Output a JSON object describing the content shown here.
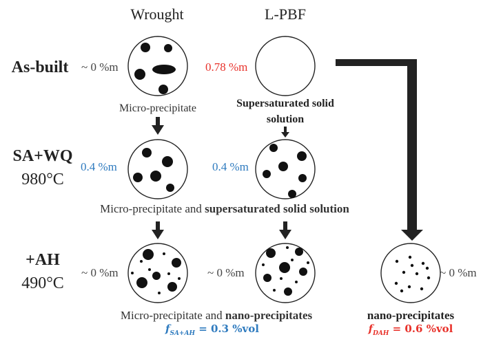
{
  "columns": {
    "wrought": "Wrought",
    "lpbf": "L-PBF"
  },
  "rows": {
    "as_built": {
      "label": "As-built",
      "wrought_fraction": "~ 0 %m",
      "lpbf_fraction": "0.78 %m",
      "wrought_caption": "Micro-precipitate",
      "lpbf_caption_line1": "Supersaturated solid",
      "lpbf_caption_line2": "solution"
    },
    "sa_wq": {
      "label": "SA+WQ",
      "temperature": "980°C",
      "wrought_fraction": "0.4 %m",
      "lpbf_fraction": "0.4 %m",
      "caption_plain": "Micro-precipitate and ",
      "caption_bold": "supersaturated solid solution"
    },
    "ah": {
      "label": "+AH",
      "temperature": "490°C",
      "wrought_fraction": "~ 0 %m",
      "lpbf_fraction": "~ 0 %m",
      "direct_fraction": "~ 0 %m",
      "caption_plain": "Micro-precipitate and ",
      "caption_bold": "nano-precipitates",
      "formula_label": "f",
      "formula_sub": "SA+AH",
      "formula_value": " = 0.3 %vol",
      "direct_caption": "nano-precipitates",
      "direct_formula_label": "f",
      "direct_formula_sub": "DAH",
      "direct_formula_value": " = 0.6 %vol"
    }
  },
  "colors": {
    "text": "#222222",
    "highlight_red": "#e8322b",
    "highlight_blue": "#2f7bbf",
    "arrow": "#222222"
  }
}
